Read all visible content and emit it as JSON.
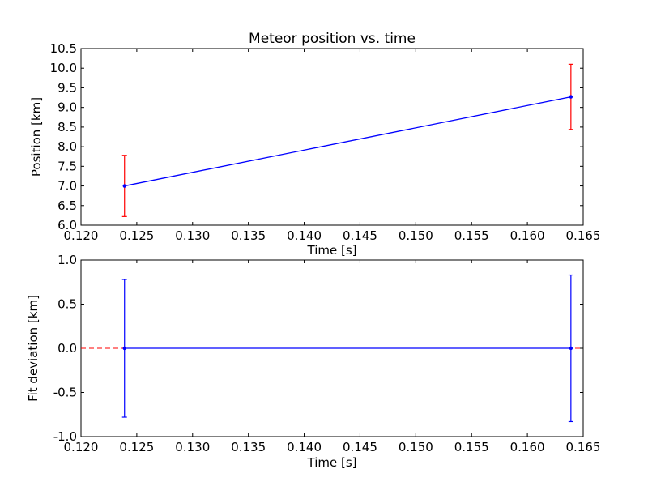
{
  "chart_data": [
    {
      "type": "line",
      "title": "Meteor position vs. time",
      "xlabel": "Time [s]",
      "ylabel": "Position [km]",
      "xlim": [
        0.12,
        0.165
      ],
      "ylim": [
        6.0,
        10.5
      ],
      "xticks": [
        "0.120",
        "0.125",
        "0.130",
        "0.135",
        "0.140",
        "0.145",
        "0.150",
        "0.155",
        "0.160",
        "0.165"
      ],
      "yticks": [
        "6.0",
        "6.5",
        "7.0",
        "7.5",
        "8.0",
        "8.5",
        "9.0",
        "9.5",
        "10.0",
        "10.5"
      ],
      "grid": false,
      "series": [
        {
          "color": "#0000ff",
          "error_color": "#ff0000",
          "x": [
            0.1239,
            0.1639
          ],
          "y": [
            7.0,
            9.27
          ],
          "yerr": [
            0.78,
            0.83
          ]
        }
      ]
    },
    {
      "type": "line",
      "title": "",
      "xlabel": "Time [s]",
      "ylabel": "Fit deviation [km]",
      "xlim": [
        0.12,
        0.165
      ],
      "ylim": [
        -1.0,
        1.0
      ],
      "xticks": [
        "0.120",
        "0.125",
        "0.130",
        "0.135",
        "0.140",
        "0.145",
        "0.150",
        "0.155",
        "0.160",
        "0.165"
      ],
      "yticks": [
        "1.0",
        "0.5",
        "0.0",
        "-0.5",
        "-1.0"
      ],
      "ytick_values": [
        1.0,
        0.5,
        0.0,
        -0.5,
        -1.0
      ],
      "grid": false,
      "reference_line": {
        "y": 0.0,
        "color": "#ff0000",
        "style": "dashed"
      },
      "series": [
        {
          "color": "#0000ff",
          "error_color": "#0000ff",
          "x": [
            0.1239,
            0.1639
          ],
          "y": [
            0.0,
            0.0
          ],
          "yerr": [
            0.78,
            0.83
          ]
        }
      ]
    }
  ]
}
